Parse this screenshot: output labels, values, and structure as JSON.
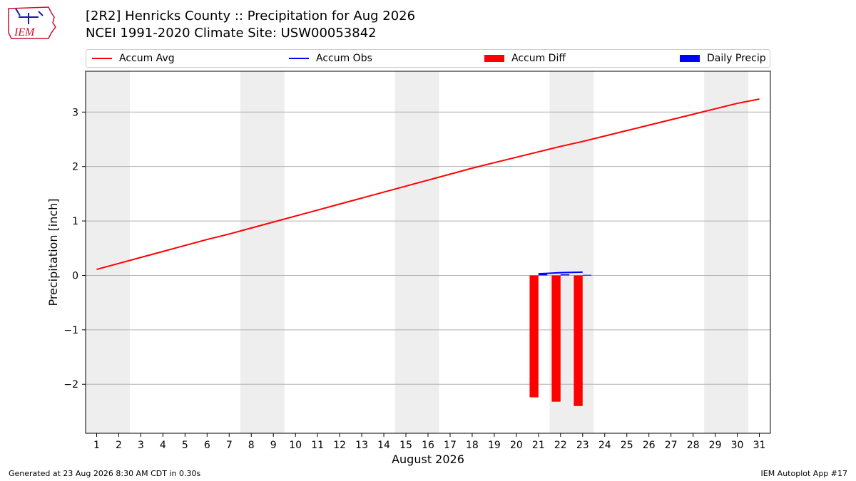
{
  "header": {
    "title_line1": "[2R2] Henricks County :: Precipitation for Aug 2026",
    "title_line2": "NCEI 1991-2020 Climate Site: USW00053842",
    "logo_text": "IEM"
  },
  "footer": {
    "left": "Generated at 23 Aug 2026 8:30 AM CDT in 0.30s",
    "right": "IEM Autoplot App #17"
  },
  "colors": {
    "accum_avg": "#ff0000",
    "accum_obs": "#0000ff",
    "accum_diff": "#ff0000",
    "daily_precip": "#0000ff",
    "weekend_shade": "#eeeeee",
    "grid": "#b0b0b0"
  },
  "chart_data": {
    "type": "line",
    "xlabel": "August 2026",
    "ylabel": "Precipitation [inch]",
    "ylim": [
      -2.9,
      3.75
    ],
    "xlim": [
      0.5,
      31.5
    ],
    "yticks": [
      -2,
      -1,
      0,
      1,
      2,
      3
    ],
    "ytick_labels": [
      "−2",
      "−1",
      "0",
      "1",
      "2",
      "3"
    ],
    "x": [
      1,
      2,
      3,
      4,
      5,
      6,
      7,
      8,
      9,
      10,
      11,
      12,
      13,
      14,
      15,
      16,
      17,
      18,
      19,
      20,
      21,
      22,
      23,
      24,
      25,
      26,
      27,
      28,
      29,
      30,
      31
    ],
    "xtick_labels": [
      "1",
      "2",
      "3",
      "4",
      "5",
      "6",
      "7",
      "8",
      "9",
      "10",
      "11",
      "12",
      "13",
      "14",
      "15",
      "16",
      "17",
      "18",
      "19",
      "20",
      "21",
      "22",
      "23",
      "24",
      "25",
      "26",
      "27",
      "28",
      "29",
      "30",
      "31"
    ],
    "grid": "horizontal",
    "legend_position": "top",
    "weekend_spans": [
      [
        0.5,
        2.5
      ],
      [
        7.5,
        9.5
      ],
      [
        14.5,
        16.5
      ],
      [
        21.5,
        23.5
      ],
      [
        28.5,
        30.5
      ]
    ],
    "series": [
      {
        "name": "Accum Avg",
        "kind": "line",
        "x": [
          1,
          2,
          3,
          4,
          5,
          6,
          7,
          8,
          9,
          10,
          11,
          12,
          13,
          14,
          15,
          16,
          17,
          18,
          19,
          20,
          21,
          22,
          23,
          24,
          25,
          26,
          27,
          28,
          29,
          30,
          31
        ],
        "values": [
          0.11,
          0.22,
          0.33,
          0.44,
          0.55,
          0.66,
          0.76,
          0.87,
          0.98,
          1.09,
          1.2,
          1.31,
          1.42,
          1.53,
          1.64,
          1.75,
          1.86,
          1.97,
          2.07,
          2.17,
          2.27,
          2.37,
          2.46,
          2.56,
          2.66,
          2.76,
          2.86,
          2.96,
          3.06,
          3.16,
          3.24
        ]
      },
      {
        "name": "Accum Obs",
        "kind": "line",
        "x": [
          21,
          22,
          23
        ],
        "values": [
          0.03,
          0.05,
          0.06
        ]
      },
      {
        "name": "Accum Diff",
        "kind": "bar",
        "x": [
          21,
          22,
          23
        ],
        "values": [
          -2.24,
          -2.32,
          -2.4
        ]
      },
      {
        "name": "Daily Precip",
        "kind": "bar",
        "x": [
          21,
          22,
          23
        ],
        "values": [
          0.03,
          0.02,
          0.01
        ]
      }
    ]
  }
}
